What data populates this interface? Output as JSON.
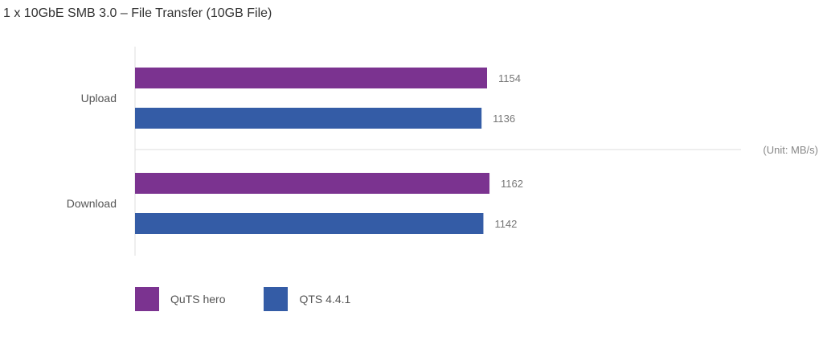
{
  "title": "1 x 10GbE SMB 3.0 – File Transfer (10GB File)",
  "chart_data": {
    "type": "bar",
    "orientation": "horizontal",
    "title": "1 x 10GbE SMB 3.0 – File Transfer (10GB File)",
    "categories": [
      "Upload",
      "Download"
    ],
    "series": [
      {
        "name": "QuTS hero",
        "color": "#7b3390",
        "values": [
          1154,
          1162
        ]
      },
      {
        "name": "QTS 4.4.1",
        "color": "#345ca6",
        "values": [
          1136,
          1142
        ]
      }
    ],
    "unit_label": "(Unit: MB/s)",
    "xlim": [
      0,
      2000
    ],
    "grid": false,
    "legend_position": "bottom-left",
    "data_labels": true
  }
}
